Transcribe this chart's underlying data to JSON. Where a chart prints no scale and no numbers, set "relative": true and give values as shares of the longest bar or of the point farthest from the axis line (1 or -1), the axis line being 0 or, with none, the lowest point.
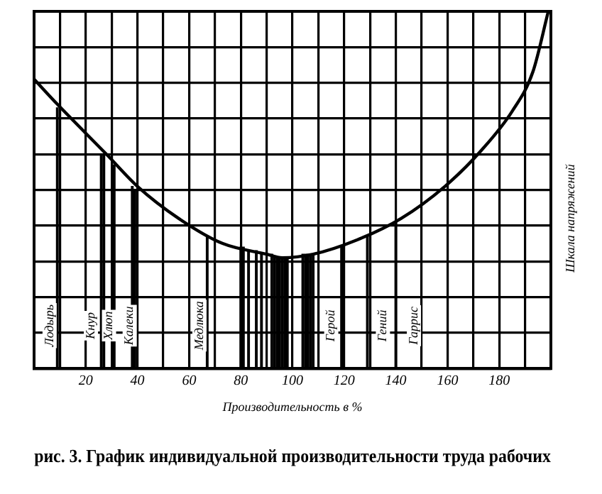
{
  "chart_data": {
    "type": "line",
    "relative": true,
    "title": "рис. 3. График индивидуальной производительности труда рабочих",
    "xlabel": "Производительность в %",
    "ylabel": "Шкала напряжений",
    "xlim": [
      0,
      200
    ],
    "xticks": [
      {
        "value": 0,
        "label": null
      },
      {
        "value": 10,
        "label": null
      },
      20,
      {
        "value": 30,
        "label": null
      },
      40,
      {
        "value": 50,
        "label": null
      },
      60,
      {
        "value": 70,
        "label": null
      },
      80,
      {
        "value": 90,
        "label": null
      },
      100,
      {
        "value": 110,
        "label": null
      },
      120,
      {
        "value": 130,
        "label": null
      },
      140,
      {
        "value": 150,
        "label": null
      },
      160,
      {
        "value": 170,
        "label": null
      },
      180,
      {
        "value": 190,
        "label": null
      },
      {
        "value": 200,
        "label": null
      }
    ],
    "grid": true,
    "legend": false,
    "marker": "none",
    "line_style": "solid",
    "series": [
      {
        "color": "#000000",
        "x": [
          0,
          9,
          28,
          40,
          56,
          73,
          90,
          96,
          108,
          125,
          142,
          159,
          173,
          185,
          193,
          199
        ],
        "values": [
          0.81,
          0.74,
          0.6,
          0.51,
          0.42,
          0.35,
          0.32,
          0.31,
          0.32,
          0.36,
          0.42,
          0.51,
          0.61,
          0.72,
          0.83,
          1
        ]
      },
      {
        "type": "bar",
        "color": "#000000",
        "x": [
          9,
          26,
          27,
          31,
          38,
          39,
          67,
          80,
          81,
          83,
          86,
          88,
          92,
          93,
          94,
          95,
          96,
          97,
          98,
          104,
          105,
          106,
          107,
          108,
          119,
          129,
          140
        ],
        "values": [
          0.73,
          0.6,
          0.6,
          0.57,
          0.51,
          0.5,
          0.37,
          0.34,
          0.34,
          0.33,
          0.33,
          0.32,
          0.32,
          0.31,
          0.31,
          0.31,
          0.31,
          0.31,
          0.31,
          0.32,
          0.32,
          0.32,
          0.32,
          0.32,
          0.34,
          0.37,
          0.41
        ]
      }
    ],
    "annotations": [
      {
        "text": "Лодырь",
        "x": 6,
        "y": 0.12
      },
      {
        "text": "Кнур",
        "x": 22,
        "y": 0.12
      },
      {
        "text": "Хлюп",
        "x": 29,
        "y": 0.12
      },
      {
        "text": "Калеки",
        "x": 37,
        "y": 0.12
      },
      {
        "text": "Медлюка",
        "x": 64,
        "y": 0.12
      },
      {
        "text": "Герой",
        "x": 115,
        "y": 0.12
      },
      {
        "text": "Гений",
        "x": 135,
        "y": 0.12
      },
      {
        "text": "Гаррис",
        "x": 147,
        "y": 0.12
      }
    ]
  }
}
